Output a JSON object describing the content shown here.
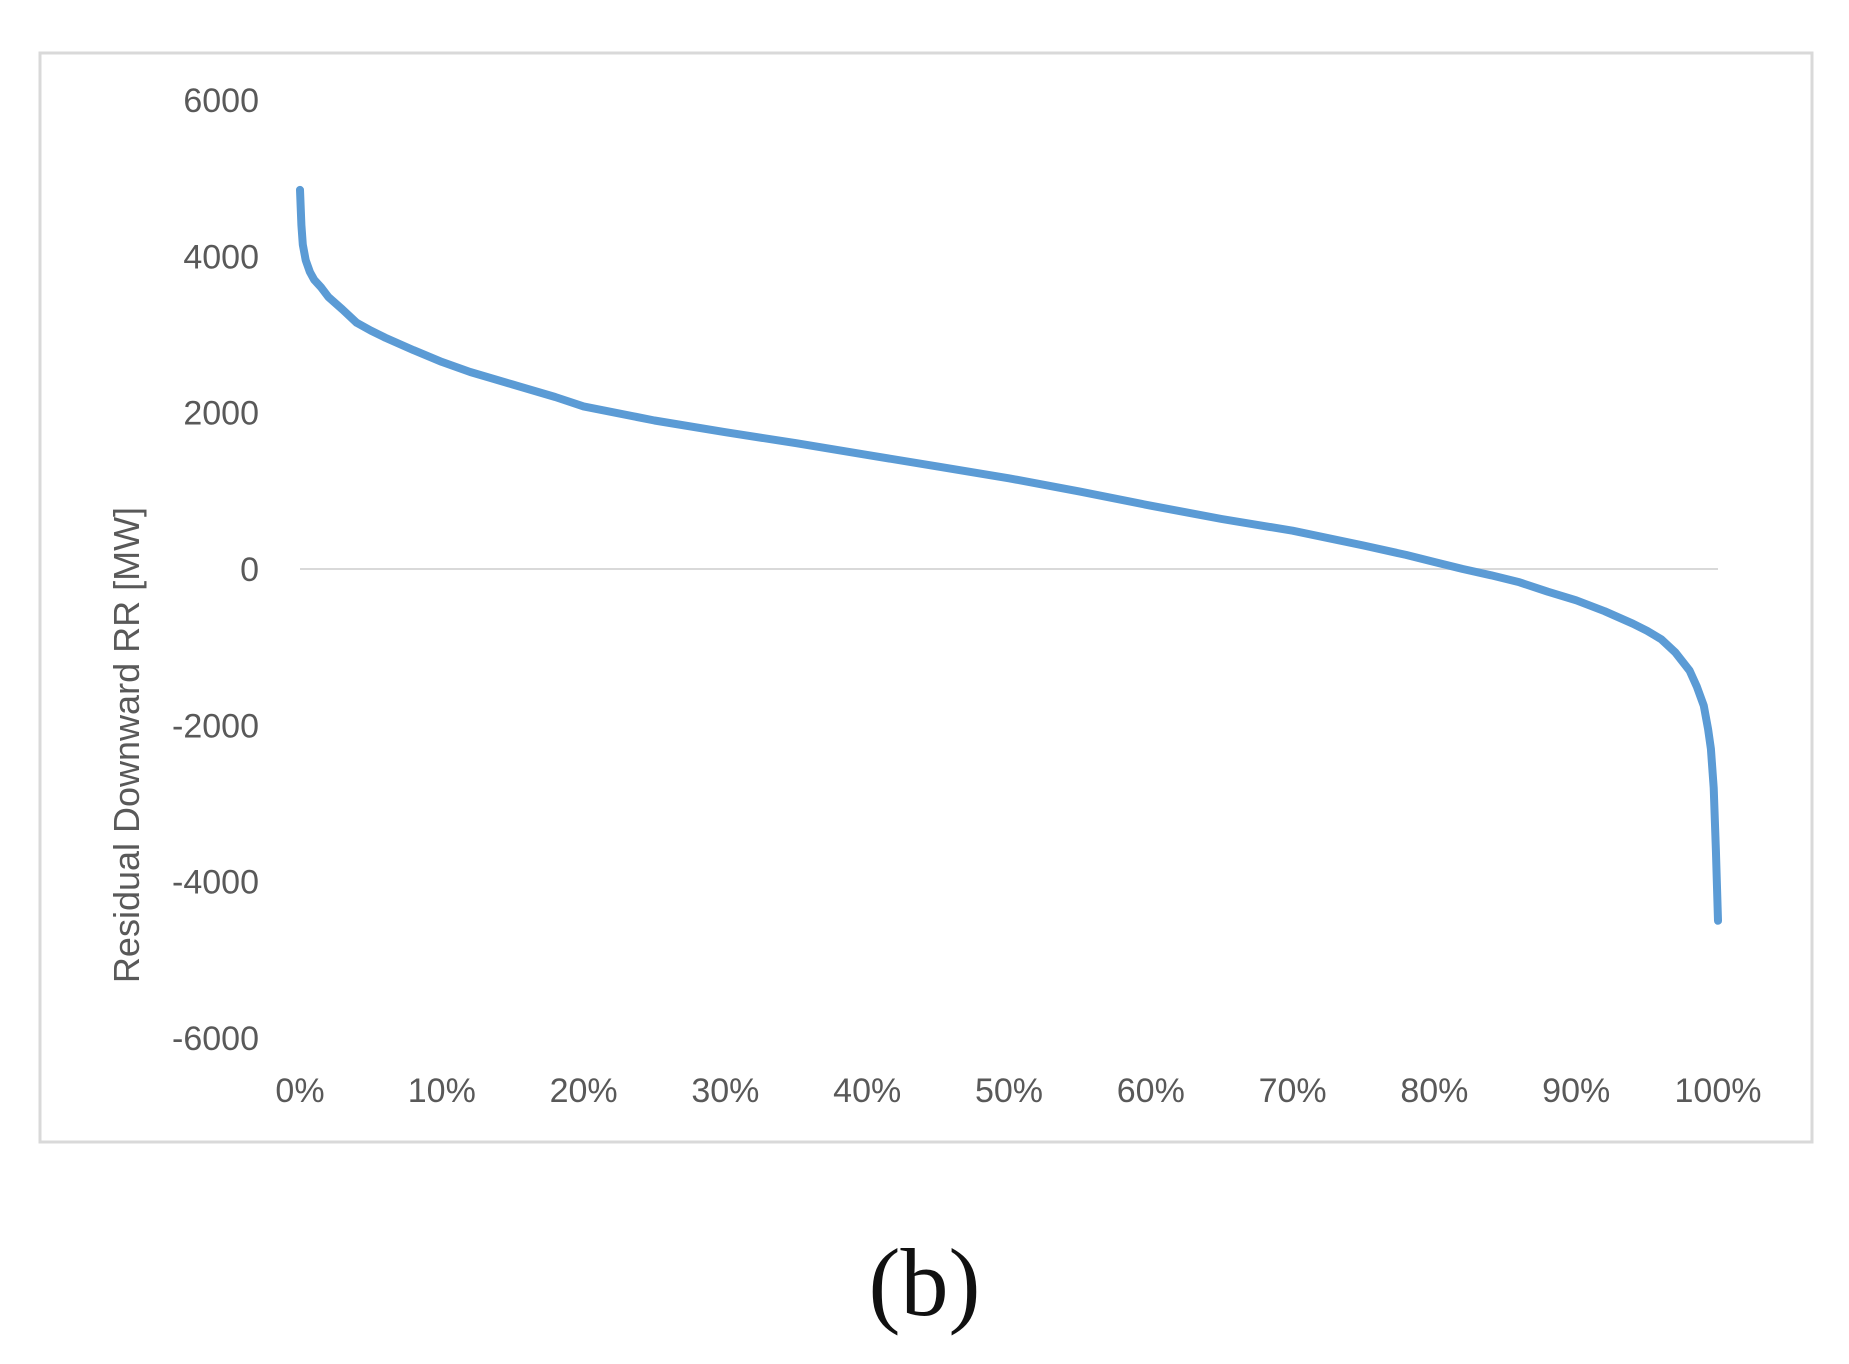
{
  "caption": "(b)",
  "chart_data": {
    "type": "line",
    "title": "",
    "xlabel": "",
    "ylabel": "Residual Downward RR [MW]",
    "xlim": [
      0,
      100
    ],
    "ylim": [
      -6000,
      6000
    ],
    "x_ticks": [
      "0%",
      "10%",
      "20%",
      "30%",
      "40%",
      "50%",
      "60%",
      "70%",
      "80%",
      "90%",
      "100%"
    ],
    "y_ticks": [
      "6000",
      "4000",
      "2000",
      "0",
      "-2000",
      "-4000",
      "-6000"
    ],
    "y_tick_values": [
      6000,
      4000,
      2000,
      0,
      -2000,
      -4000,
      -6000
    ],
    "x_tick_values": [
      0,
      10,
      20,
      30,
      40,
      50,
      60,
      70,
      80,
      90,
      100
    ],
    "grid": "zero-line only",
    "legend": "none",
    "colors": {
      "series": "#5b9bd5",
      "zero_line": "#d9d9d9",
      "frame": "#d9d9d9",
      "text": "#595959"
    },
    "series": [
      {
        "x": [
          0,
          0.1,
          0.2,
          0.4,
          0.7,
          1,
          1.5,
          2,
          3,
          4,
          5,
          6,
          8,
          10,
          12,
          15,
          18,
          20,
          25,
          30,
          35,
          40,
          45,
          50,
          55,
          60,
          65,
          70,
          75,
          78,
          80,
          82,
          84,
          86,
          88,
          90,
          92,
          94,
          95,
          96,
          97,
          98,
          98.5,
          99,
          99.3,
          99.5,
          99.7,
          99.85,
          100
        ],
        "values": [
          4850,
          4400,
          4150,
          3950,
          3800,
          3700,
          3600,
          3480,
          3320,
          3150,
          3050,
          2960,
          2800,
          2650,
          2520,
          2360,
          2200,
          2080,
          1900,
          1750,
          1610,
          1460,
          1310,
          1160,
          990,
          810,
          640,
          490,
          300,
          180,
          90,
          0,
          -80,
          -170,
          -290,
          -400,
          -540,
          -700,
          -790,
          -900,
          -1070,
          -1300,
          -1500,
          -1750,
          -2050,
          -2300,
          -2800,
          -3600,
          -4500
        ]
      }
    ]
  }
}
